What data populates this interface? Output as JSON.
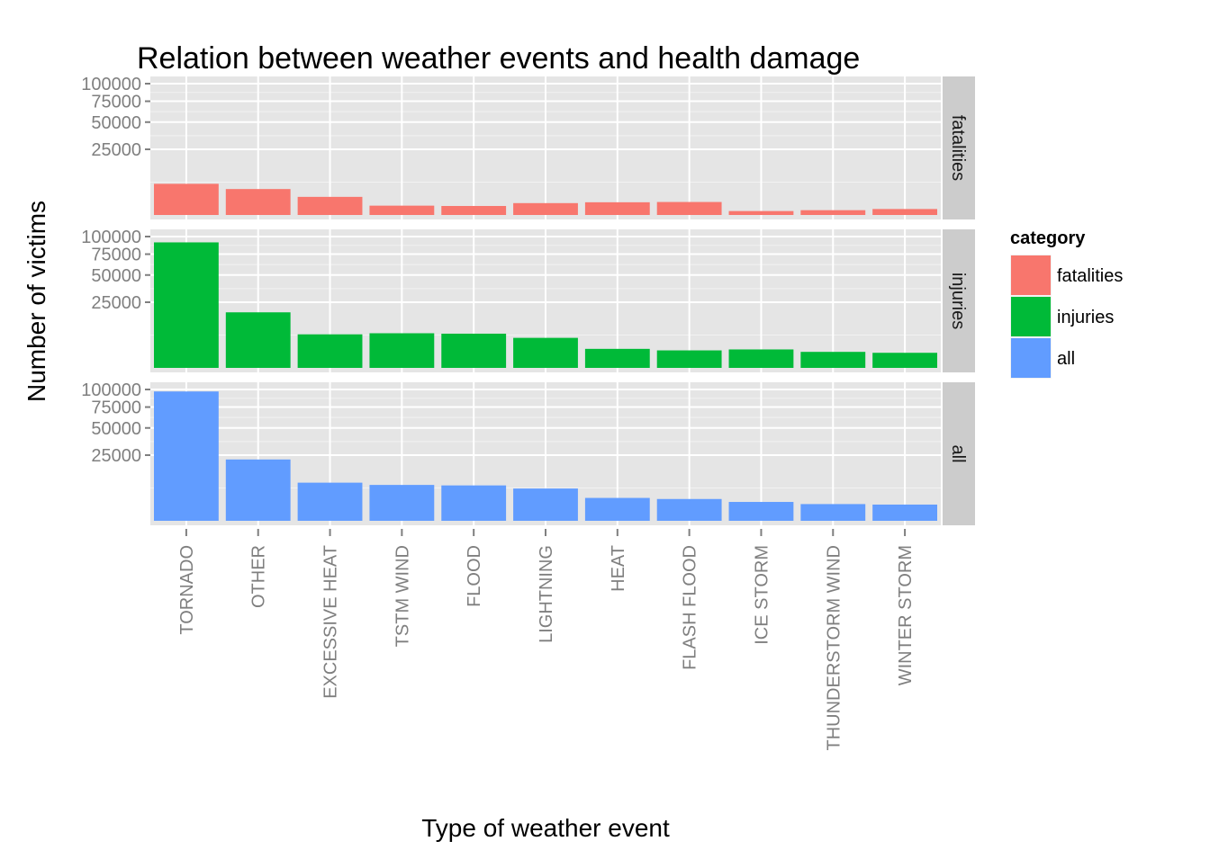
{
  "chart_data": {
    "type": "bar",
    "title": "Relation between weather events and health damage",
    "xlabel": "Type of weather event",
    "ylabel": "Number of victims",
    "y_scale": "sqrt",
    "ylim": [
      0,
      100000
    ],
    "y_ticks": [
      25000,
      50000,
      75000,
      100000
    ],
    "y_tick_labels": [
      "25000",
      "50000",
      "75000",
      "100000"
    ],
    "grid": true,
    "facet_by": "category",
    "categories": [
      "TORNADO",
      "OTHER",
      "EXCESSIVE HEAT",
      "TSTM WIND",
      "FLOOD",
      "LIGHTNING",
      "HEAT",
      "FLASH FLOOD",
      "ICE STORM",
      "THUNDERSTORM WIND",
      "WINTER STORM"
    ],
    "series": [
      {
        "name": "fatalities",
        "color": "#F8766D",
        "values": [
          5633,
          3900,
          1903,
          504,
          470,
          816,
          937,
          978,
          89,
          133,
          206
        ]
      },
      {
        "name": "injuries",
        "color": "#00BA38",
        "values": [
          91346,
          17900,
          6525,
          6957,
          6789,
          5230,
          2100,
          1777,
          1975,
          1488,
          1321
        ]
      },
      {
        "name": "all",
        "color": "#619CFF",
        "values": [
          96979,
          21800,
          8428,
          7461,
          7259,
          6046,
          3037,
          2755,
          2064,
          1621,
          1527
        ]
      }
    ],
    "legend": {
      "title": "category",
      "position": "right",
      "entries": [
        "fatalities",
        "injuries",
        "all"
      ]
    }
  }
}
